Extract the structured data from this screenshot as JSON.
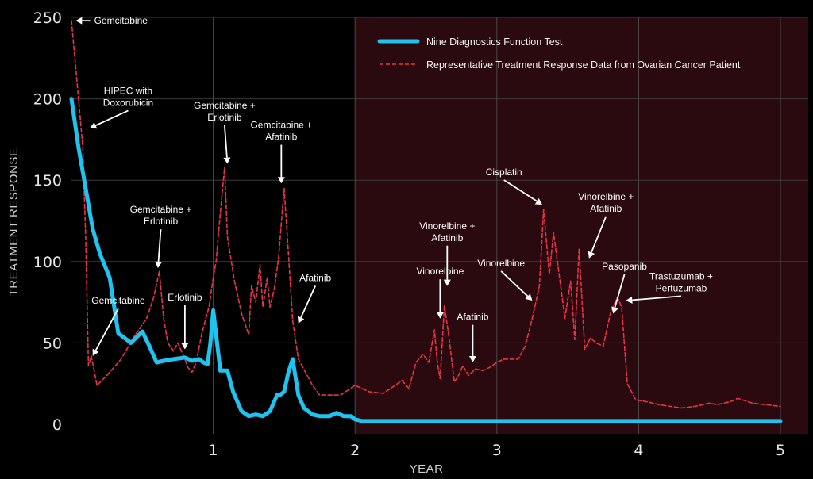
{
  "chart_data": {
    "type": "line",
    "xlabel": "YEAR",
    "ylabel": "TREATMENT RESPONSE",
    "xlim": [
      0,
      5.15
    ],
    "ylim": [
      0,
      250
    ],
    "x_ticks": [
      1,
      2,
      3,
      4,
      5
    ],
    "y_ticks": [
      0,
      50,
      100,
      150,
      200,
      250
    ],
    "grid": true,
    "legend_position": "top-right",
    "shaded_region": {
      "x_start": 2,
      "x_end": 5.15,
      "color": "#2a0a0e"
    },
    "colors": {
      "blue": "#1fc3f0",
      "red": "#e8344a",
      "background": "#000000"
    },
    "series": [
      {
        "name": "Nine Diagnostics Function Test",
        "style": "solid",
        "color": "#1fc3f0",
        "x": [
          0,
          0.05,
          0.1,
          0.15,
          0.2,
          0.27,
          0.33,
          0.42,
          0.5,
          0.55,
          0.6,
          0.65,
          0.72,
          0.8,
          0.85,
          0.9,
          0.93,
          0.96,
          0.98,
          1.0,
          1.02,
          1.05,
          1.1,
          1.14,
          1.2,
          1.25,
          1.3,
          1.35,
          1.4,
          1.45,
          1.47,
          1.5,
          1.53,
          1.56,
          1.6,
          1.64,
          1.7,
          1.75,
          1.82,
          1.87,
          1.92,
          1.97,
          2.0,
          2.05,
          3.0,
          4.0,
          5.0
        ],
        "values": [
          200,
          170,
          145,
          120,
          105,
          90,
          56,
          50,
          57,
          48,
          38,
          39,
          40,
          41,
          39,
          40,
          38,
          37,
          50,
          70,
          55,
          33,
          33,
          20,
          8,
          5,
          6,
          5,
          8,
          18,
          18,
          20,
          32,
          40,
          18,
          10,
          6,
          5,
          5,
          7,
          5,
          5,
          3,
          2,
          2,
          2,
          2
        ]
      },
      {
        "name": "Representative Treatment Response Data from Ovarian Cancer Patient",
        "style": "dashed",
        "color": "#e8344a",
        "x": [
          0,
          0.04,
          0.08,
          0.1,
          0.12,
          0.14,
          0.18,
          0.25,
          0.35,
          0.45,
          0.53,
          0.58,
          0.62,
          0.65,
          0.68,
          0.72,
          0.75,
          0.8,
          0.82,
          0.85,
          0.88,
          0.92,
          0.97,
          1.0,
          1.02,
          1.05,
          1.08,
          1.1,
          1.15,
          1.2,
          1.25,
          1.27,
          1.3,
          1.33,
          1.35,
          1.38,
          1.4,
          1.43,
          1.46,
          1.5,
          1.53,
          1.56,
          1.6,
          1.65,
          1.7,
          1.75,
          1.8,
          1.9,
          2.0,
          2.1,
          2.2,
          2.3,
          2.33,
          2.38,
          2.43,
          2.48,
          2.52,
          2.56,
          2.58,
          2.6,
          2.63,
          2.66,
          2.7,
          2.73,
          2.76,
          2.8,
          2.85,
          2.9,
          2.95,
          3.0,
          3.05,
          3.15,
          3.2,
          3.25,
          3.3,
          3.33,
          3.37,
          3.4,
          3.45,
          3.48,
          3.52,
          3.55,
          3.58,
          3.62,
          3.66,
          3.7,
          3.75,
          3.8,
          3.85,
          3.88,
          3.92,
          3.98,
          4.05,
          4.15,
          4.3,
          4.4,
          4.5,
          4.55,
          4.65,
          4.7,
          4.8,
          4.9,
          5.0
        ],
        "values": [
          248,
          210,
          170,
          115,
          36,
          42,
          24,
          30,
          40,
          55,
          65,
          78,
          94,
          65,
          50,
          45,
          50,
          40,
          35,
          32,
          38,
          56,
          72,
          90,
          100,
          130,
          158,
          115,
          88,
          68,
          55,
          85,
          75,
          98,
          72,
          90,
          72,
          83,
          102,
          145,
          105,
          64,
          40,
          32,
          24,
          18,
          18,
          18,
          24,
          20,
          19,
          25,
          27,
          22,
          38,
          43,
          38,
          58,
          38,
          28,
          73,
          55,
          26,
          30,
          36,
          30,
          34,
          33,
          35,
          38,
          40,
          40,
          48,
          65,
          85,
          132,
          92,
          118,
          85,
          65,
          88,
          52,
          108,
          46,
          53,
          50,
          48,
          68,
          78,
          72,
          25,
          15,
          14,
          12,
          10,
          11,
          13,
          12,
          14,
          16,
          13,
          12,
          11
        ]
      }
    ],
    "annotations": [
      {
        "lines": [
          "Gemcitabine"
        ],
        "x": 0.03,
        "y": 248,
        "tx": 0.16,
        "ty": 246,
        "anchor": "start"
      },
      {
        "lines": [
          "HIPEC with",
          "Doxorubicin"
        ],
        "x": 0.13,
        "y": 182,
        "tx": 0.4,
        "ty": 203,
        "anchor": "middle"
      },
      {
        "lines": [
          "Gemcitabine"
        ],
        "x": 0.15,
        "y": 42,
        "tx": 0.33,
        "ty": 74,
        "anchor": "middle"
      },
      {
        "lines": [
          "Gemcitabine +",
          "Erlotinib"
        ],
        "x": 0.61,
        "y": 96,
        "tx": 0.63,
        "ty": 130,
        "anchor": "middle"
      },
      {
        "lines": [
          "Erlotinib"
        ],
        "x": 0.8,
        "y": 46,
        "tx": 0.8,
        "ty": 76,
        "anchor": "middle"
      },
      {
        "lines": [
          "Gemcitabine +",
          "Erlotinib"
        ],
        "x": 1.1,
        "y": 160,
        "tx": 1.08,
        "ty": 194,
        "anchor": "middle"
      },
      {
        "lines": [
          "Gemcitabine +",
          "Afatinib"
        ],
        "x": 1.48,
        "y": 148,
        "tx": 1.48,
        "ty": 182,
        "anchor": "middle"
      },
      {
        "lines": [
          "Afatinib"
        ],
        "x": 1.6,
        "y": 62,
        "tx": 1.72,
        "ty": 88,
        "anchor": "middle"
      },
      {
        "lines": [
          "Vinorelbine"
        ],
        "x": 2.6,
        "y": 65,
        "tx": 2.6,
        "ty": 92,
        "anchor": "middle"
      },
      {
        "lines": [
          "Vinorelbine +",
          "Afatinib"
        ],
        "x": 2.65,
        "y": 85,
        "tx": 2.65,
        "ty": 120,
        "anchor": "middle"
      },
      {
        "lines": [
          "Afatinib"
        ],
        "x": 2.83,
        "y": 38,
        "tx": 2.83,
        "ty": 64,
        "anchor": "middle"
      },
      {
        "lines": [
          "Vinorelbine"
        ],
        "x": 3.25,
        "y": 76,
        "tx": 3.03,
        "ty": 97,
        "anchor": "middle"
      },
      {
        "lines": [
          "Cisplatin"
        ],
        "x": 3.32,
        "y": 135,
        "tx": 3.05,
        "ty": 153,
        "anchor": "middle"
      },
      {
        "lines": [
          "Vinorelbine +",
          "Afatinib"
        ],
        "x": 3.65,
        "y": 102,
        "tx": 3.77,
        "ty": 138,
        "anchor": "middle"
      },
      {
        "lines": [
          "Pasopanib"
        ],
        "x": 3.82,
        "y": 68,
        "tx": 3.9,
        "ty": 95,
        "anchor": "middle"
      },
      {
        "lines": [
          "Trastuzumab +",
          "Pertuzumab"
        ],
        "x": 3.91,
        "y": 76,
        "tx": 4.3,
        "ty": 89,
        "anchor": "middle"
      }
    ]
  }
}
